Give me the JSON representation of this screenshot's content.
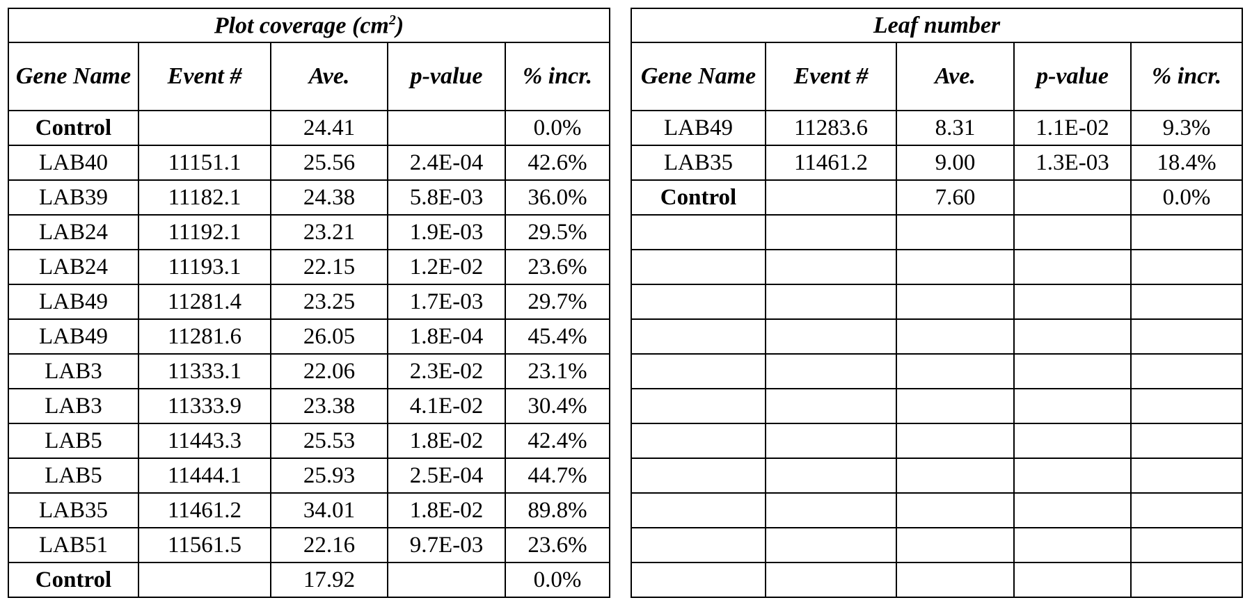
{
  "tables": [
    {
      "title_parts": [
        "Plot coverage (cm",
        "2",
        ")"
      ],
      "headers": [
        "Gene Name",
        "Event #",
        "Ave.",
        "p-value",
        "% incr."
      ],
      "rows": [
        [
          "Control",
          null,
          "24.41",
          null,
          "0.0%"
        ],
        [
          "LAB40",
          "11151.1",
          "25.56",
          "2.4E-04",
          "42.6%"
        ],
        [
          "LAB39",
          "11182.1",
          "24.38",
          "5.8E-03",
          "36.0%"
        ],
        [
          "LAB24",
          "11192.1",
          "23.21",
          "1.9E-03",
          "29.5%"
        ],
        [
          "LAB24",
          "11193.1",
          "22.15",
          "1.2E-02",
          "23.6%"
        ],
        [
          "LAB49",
          "11281.4",
          "23.25",
          "1.7E-03",
          "29.7%"
        ],
        [
          "LAB49",
          "11281.6",
          "26.05",
          "1.8E-04",
          "45.4%"
        ],
        [
          "LAB3",
          "11333.1",
          "22.06",
          "2.3E-02",
          "23.1%"
        ],
        [
          "LAB3",
          "11333.9",
          "23.38",
          "4.1E-02",
          "30.4%"
        ],
        [
          "LAB5",
          "11443.3",
          "25.53",
          "1.8E-02",
          "42.4%"
        ],
        [
          "LAB5",
          "11444.1",
          "25.93",
          "2.5E-04",
          "44.7%"
        ],
        [
          "LAB35",
          "11461.2",
          "34.01",
          "1.8E-02",
          "89.8%"
        ],
        [
          "LAB51",
          "11561.5",
          "22.16",
          "9.7E-03",
          "23.6%"
        ],
        [
          "Control",
          null,
          "17.92",
          null,
          "0.0%"
        ]
      ]
    },
    {
      "title_parts": [
        "Leaf number"
      ],
      "headers": [
        "Gene Name",
        "Event #",
        "Ave.",
        "p-value",
        "% incr."
      ],
      "rows": [
        [
          "LAB49",
          "11283.6",
          "8.31",
          "1.1E-02",
          "9.3%"
        ],
        [
          "LAB35",
          "11461.2",
          "9.00",
          "1.3E-03",
          "18.4%"
        ],
        [
          "Control",
          null,
          "7.60",
          null,
          "0.0%"
        ]
      ]
    }
  ]
}
